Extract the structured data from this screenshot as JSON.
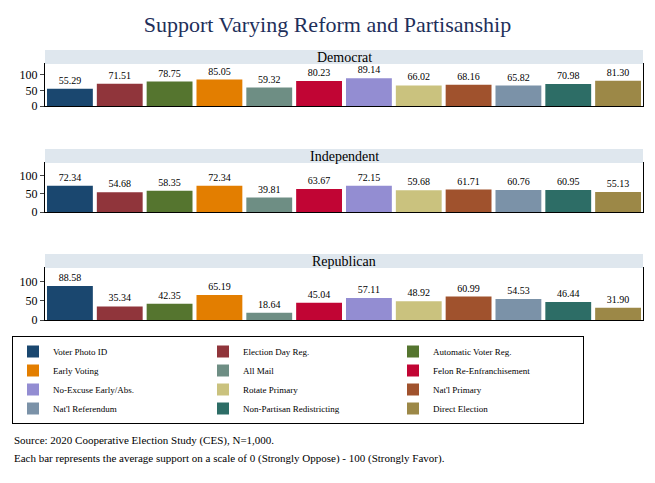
{
  "title": "Support Varying Reform and Partisanship",
  "notes": [
    "Source: 2020 Cooperative Election Study (CES), N=1,000.",
    "Each bar represents the average support on a scale of 0 (Strongly Oppose) - 100 (Strongly Favor)."
  ],
  "chart_data": [
    {
      "type": "bar",
      "title": "Democrat",
      "categories": [
        "Voter Photo ID",
        "Election Day Reg.",
        "Automatic Voter Reg.",
        "Early Voting",
        "All Mail",
        "Felon Re-Enfranchisement",
        "No-Excuse Early/Abs.",
        "Rotate Primary",
        "Nat'l Primary",
        "Nat'l Referendum",
        "Non-Partisan Redistricting",
        "Direct Election"
      ],
      "values": [
        55.29,
        71.51,
        78.75,
        85.05,
        59.32,
        80.23,
        89.14,
        66.02,
        68.16,
        65.82,
        70.98,
        81.3
      ],
      "value_labels": [
        "55.29",
        "71.51",
        "78.75",
        "85.05",
        "59.32",
        "80.23",
        "89.14",
        "66.02",
        "68.16",
        "65.82",
        "70.98",
        "81.30"
      ],
      "colors": [
        "#1a476f",
        "#90353b",
        "#55752f",
        "#e37e00",
        "#6e8e84",
        "#c10534",
        "#938dd2",
        "#cac27e",
        "#a0522d",
        "#7b92a8",
        "#2d6d66",
        "#9c8847"
      ],
      "ylim": [
        0,
        135
      ],
      "yticks": [
        0,
        50,
        100
      ],
      "grid": false,
      "data_labels": true,
      "tick_labels": "y",
      "legend": "bottom"
    },
    {
      "type": "bar",
      "title": "Independent",
      "categories": [
        "Voter Photo ID",
        "Election Day Reg.",
        "Automatic Voter Reg.",
        "Early Voting",
        "All Mail",
        "Felon Re-Enfranchisement",
        "No-Excuse Early/Abs.",
        "Rotate Primary",
        "Nat'l Primary",
        "Nat'l Referendum",
        "Non-Partisan Redistricting",
        "Direct Election"
      ],
      "values": [
        72.34,
        54.68,
        58.35,
        72.34,
        39.81,
        63.67,
        72.15,
        59.68,
        61.71,
        60.76,
        60.95,
        55.13
      ],
      "value_labels": [
        "72.34",
        "54.68",
        "58.35",
        "72.34",
        "39.81",
        "63.67",
        "72.15",
        "59.68",
        "61.71",
        "60.76",
        "60.95",
        "55.13"
      ],
      "colors": [
        "#1a476f",
        "#90353b",
        "#55752f",
        "#e37e00",
        "#6e8e84",
        "#c10534",
        "#938dd2",
        "#cac27e",
        "#a0522d",
        "#7b92a8",
        "#2d6d66",
        "#9c8847"
      ],
      "ylim": [
        0,
        135
      ],
      "yticks": [
        0,
        50,
        100
      ],
      "grid": false,
      "data_labels": true,
      "tick_labels": "y"
    },
    {
      "type": "bar",
      "title": "Republican",
      "categories": [
        "Voter Photo ID",
        "Election Day Reg.",
        "Automatic Voter Reg.",
        "Early Voting",
        "All Mail",
        "Felon Re-Enfranchisement",
        "No-Excuse Early/Abs.",
        "Rotate Primary",
        "Nat'l Primary",
        "Nat'l Referendum",
        "Non-Partisan Redistricting",
        "Direct Election"
      ],
      "values": [
        88.58,
        35.34,
        42.35,
        65.19,
        18.64,
        45.04,
        57.11,
        48.92,
        60.99,
        54.53,
        46.44,
        31.9
      ],
      "value_labels": [
        "88.58",
        "35.34",
        "42.35",
        "65.19",
        "18.64",
        "45.04",
        "57.11",
        "48.92",
        "60.99",
        "54.53",
        "46.44",
        "31.90"
      ],
      "colors": [
        "#1a476f",
        "#90353b",
        "#55752f",
        "#e37e00",
        "#6e8e84",
        "#c10534",
        "#938dd2",
        "#cac27e",
        "#a0522d",
        "#7b92a8",
        "#2d6d66",
        "#9c8847"
      ],
      "ylim": [
        0,
        135
      ],
      "yticks": [
        0,
        50,
        100
      ],
      "grid": false,
      "data_labels": true,
      "tick_labels": "y"
    }
  ]
}
